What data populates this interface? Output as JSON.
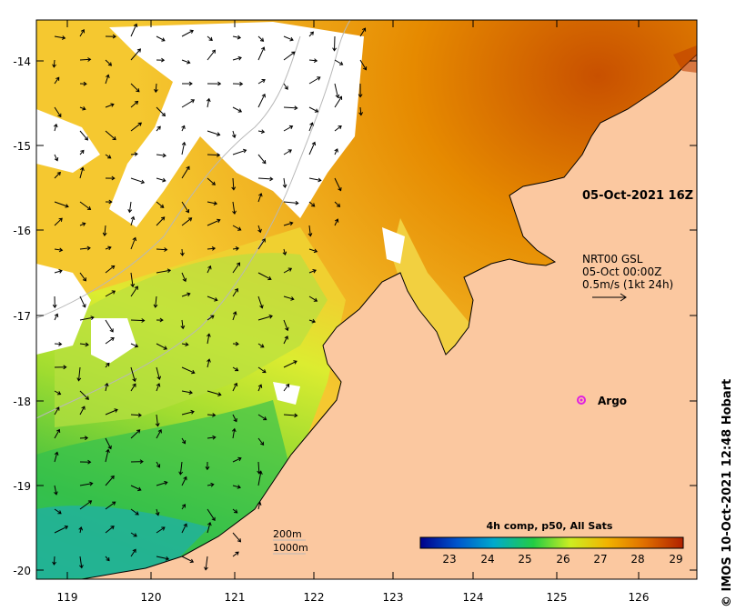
{
  "map": {
    "credit": "© IMOS 10-Oct-2021 12:48 Hobart",
    "x_ticks": [
      "119",
      "120",
      "121",
      "122",
      "123",
      "124",
      "125",
      "126"
    ],
    "y_ticks": [
      "-14",
      "-15",
      "-16",
      "-17",
      "-18",
      "-19",
      "-20"
    ],
    "sst_timestamp": "05-Oct-2021 16Z",
    "current_legend": {
      "line1": "NRT00 GSL",
      "line2": "05-Oct 00:00Z",
      "line3": "0.5m/s (1kt 24h)"
    },
    "argo_label": "Argo",
    "bathymetry_legend": {
      "line1": "200m",
      "line2": "1000m"
    },
    "colorbar": {
      "title": "4h comp, p50, All Sats",
      "ticks": [
        "23",
        "24",
        "25",
        "26",
        "27",
        "28",
        "29"
      ],
      "colors": [
        "#00008b",
        "#0055cc",
        "#00aacc",
        "#22cc44",
        "#ccee22",
        "#f2b400",
        "#e07000",
        "#b02000"
      ]
    },
    "colors": {
      "land": "#fbc8a0",
      "no_data": "#ffffff",
      "argo_marker": "#e020e0"
    }
  }
}
